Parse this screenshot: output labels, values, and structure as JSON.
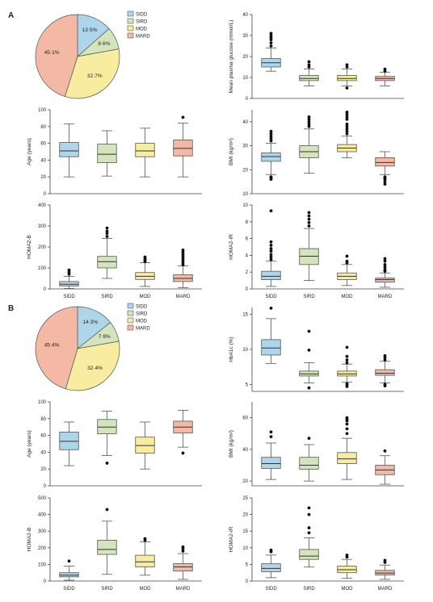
{
  "sections": [
    "A",
    "B"
  ],
  "colors": {
    "SIDD": "#aed6ea",
    "SIRD": "#d4e4bc",
    "MOD": "#f7ec9f",
    "MARD": "#f3b9a5",
    "stroke": "#555555",
    "outlier": "#111111"
  },
  "chart_data": [
    {
      "id": "A-pie",
      "type": "pie",
      "slices": [
        {
          "label": "SIDD",
          "value": 13.5,
          "display": "13·5%"
        },
        {
          "label": "SIRD",
          "value": 8.6,
          "display": "8·6%"
        },
        {
          "label": "MOD",
          "value": 32.7,
          "display": "32·7%"
        },
        {
          "label": "MARD",
          "value": 45.1,
          "display": "45·1%"
        }
      ],
      "legend": [
        "SIDD",
        "SIRD",
        "MOD",
        "MARD"
      ]
    },
    {
      "id": "A-glucose",
      "type": "box",
      "ylabel": "Mean plasma glucose (mmol/L)",
      "ylim": [
        0,
        40
      ],
      "yticks": [
        "0",
        "10",
        "20",
        "30",
        "40"
      ],
      "categories": [
        "SIDD",
        "SIRD",
        "MOD",
        "MARD"
      ],
      "boxes": [
        {
          "min": 13,
          "q1": 15,
          "median": 17,
          "q3": 19,
          "max": 24,
          "outliers": [
            25,
            26.5,
            28,
            29,
            30,
            31
          ]
        },
        {
          "min": 6,
          "q1": 8.5,
          "median": 9.5,
          "q3": 11,
          "max": 14,
          "outliers": [
            15,
            16,
            17.5
          ]
        },
        {
          "min": 6,
          "q1": 8.5,
          "median": 9.5,
          "q3": 11,
          "max": 14,
          "outliers": [
            5,
            15,
            16
          ]
        },
        {
          "min": 6,
          "q1": 8.5,
          "median": 9.5,
          "q3": 10.5,
          "max": 12.5,
          "outliers": [
            13,
            14
          ]
        }
      ]
    },
    {
      "id": "A-age",
      "type": "box",
      "ylabel": "Age (years)",
      "ylim": [
        0,
        100
      ],
      "yticks": [
        "0",
        "20",
        "40",
        "60",
        "80",
        "100"
      ],
      "categories": [
        "SIDD",
        "SIRD",
        "MOD",
        "MARD"
      ],
      "boxes": [
        {
          "min": 20,
          "q1": 44,
          "median": 51,
          "q3": 61,
          "max": 83,
          "outliers": []
        },
        {
          "min": 21,
          "q1": 37,
          "median": 47,
          "q3": 59,
          "max": 75,
          "outliers": []
        },
        {
          "min": 20,
          "q1": 44,
          "median": 51,
          "q3": 60,
          "max": 78,
          "outliers": []
        },
        {
          "min": 20,
          "q1": 45,
          "median": 54,
          "q3": 64,
          "max": 84,
          "outliers": [
            91
          ]
        }
      ]
    },
    {
      "id": "A-bmi",
      "type": "box",
      "ylabel": "BMI (kg/m²)",
      "ylim": [
        10,
        45
      ],
      "yticks": [
        "10",
        "20",
        "30",
        "40"
      ],
      "categories": [
        "SIDD",
        "SIRD",
        "MOD",
        "MARD"
      ],
      "boxes": [
        {
          "min": 18,
          "q1": 23.5,
          "median": 25.5,
          "q3": 27,
          "max": 31,
          "outliers": [
            16,
            16.5,
            17,
            32,
            33,
            34,
            35,
            36
          ]
        },
        {
          "min": 18.5,
          "q1": 25,
          "median": 27.5,
          "q3": 30,
          "max": 37,
          "outliers": [
            38,
            39,
            40,
            41,
            42
          ]
        },
        {
          "min": 25,
          "q1": 27.5,
          "median": 29,
          "q3": 30.5,
          "max": 34,
          "outliers": [
            35,
            36,
            37,
            38,
            39,
            41,
            42,
            43,
            44
          ]
        },
        {
          "min": 18,
          "q1": 21.5,
          "median": 23,
          "q3": 25,
          "max": 27.5,
          "outliers": [
            14,
            15,
            16,
            16.5,
            17
          ]
        }
      ]
    },
    {
      "id": "A-homab",
      "type": "box",
      "ylabel": "HOMA2-B",
      "ylim": [
        0,
        400
      ],
      "yticks": [
        "0",
        "100",
        "200",
        "300",
        "400"
      ],
      "categories": [
        "SIDD",
        "SIRD",
        "MOD",
        "MARD"
      ],
      "boxes": [
        {
          "min": 2,
          "q1": 14,
          "median": 22,
          "q3": 35,
          "max": 60,
          "outliers": [
            70,
            80,
            90
          ]
        },
        {
          "min": 50,
          "q1": 100,
          "median": 130,
          "q3": 155,
          "max": 240,
          "outliers": [
            250,
            265,
            275,
            290
          ]
        },
        {
          "min": 12,
          "q1": 45,
          "median": 60,
          "q3": 78,
          "max": 125,
          "outliers": [
            130,
            138,
            145,
            152
          ]
        },
        {
          "min": 6,
          "q1": 35,
          "median": 50,
          "q3": 68,
          "max": 110,
          "outliers": [
            115,
            125,
            135,
            145,
            155,
            165,
            175,
            185
          ]
        }
      ]
    },
    {
      "id": "A-homair",
      "type": "box",
      "ylabel": "HOMA2-IR",
      "ylim": [
        0,
        10
      ],
      "yticks": [
        "0",
        "2",
        "4",
        "6",
        "8",
        "10"
      ],
      "categories": [
        "SIDD",
        "SIRD",
        "MOD",
        "MARD"
      ],
      "boxes": [
        {
          "min": 0.3,
          "q1": 1.1,
          "median": 1.5,
          "q3": 2.1,
          "max": 3.3,
          "outliers": [
            3.5,
            3.8,
            4.1,
            4.5,
            4.8,
            5.2,
            5.6,
            9.3
          ]
        },
        {
          "min": 1,
          "q1": 2.9,
          "median": 3.9,
          "q3": 4.8,
          "max": 7.2,
          "outliers": [
            7.5,
            7.9,
            8.3,
            8.7,
            9.1
          ]
        },
        {
          "min": 0.4,
          "q1": 1.1,
          "median": 1.5,
          "q3": 1.9,
          "max": 2.9,
          "outliers": [
            3.1,
            3.3,
            3.9
          ]
        },
        {
          "min": 0.2,
          "q1": 0.8,
          "median": 1.1,
          "q3": 1.3,
          "max": 1.9,
          "outliers": [
            2.1,
            2.3,
            2.6,
            2.9,
            3.3,
            3.6
          ]
        }
      ]
    },
    {
      "id": "B-pie",
      "type": "pie",
      "slices": [
        {
          "label": "SIDD",
          "value": 14.3,
          "display": "14·3%"
        },
        {
          "label": "SIRD",
          "value": 7.9,
          "display": "7·9%"
        },
        {
          "label": "MOD",
          "value": 32.4,
          "display": "32·4%"
        },
        {
          "label": "MARD",
          "value": 45.4,
          "display": "45·4%"
        }
      ],
      "legend": [
        "SIDD",
        "SIRD",
        "MOD",
        "MARD"
      ]
    },
    {
      "id": "B-hba1c",
      "type": "box",
      "ylabel": "HbA1c (%)",
      "ylim": [
        4,
        16
      ],
      "yticks": [
        "5",
        "10",
        "15"
      ],
      "categories": [
        "SIDD",
        "SIRD",
        "MOD",
        "MARD"
      ],
      "boxes": [
        {
          "min": 8,
          "q1": 9.2,
          "median": 10.2,
          "q3": 11.4,
          "max": 14.4,
          "outliers": [
            15.9
          ]
        },
        {
          "min": 5.2,
          "q1": 6.2,
          "median": 6.5,
          "q3": 6.9,
          "max": 8.1,
          "outliers": [
            4.5,
            9.9,
            12.6
          ]
        },
        {
          "min": 5.3,
          "q1": 6.2,
          "median": 6.5,
          "q3": 6.9,
          "max": 7.9,
          "outliers": [
            4.7,
            5.0,
            5.1,
            8.1,
            8.5,
            9.0,
            10.3
          ]
        },
        {
          "min": 5.2,
          "q1": 6.3,
          "median": 6.6,
          "q3": 7.1,
          "max": 8.3,
          "outliers": [
            4.8,
            5.0,
            8.5,
            8.8,
            9.1
          ]
        }
      ]
    },
    {
      "id": "B-age",
      "type": "box",
      "ylabel": "Age (years)",
      "ylim": [
        0,
        100
      ],
      "yticks": [
        "0",
        "20",
        "40",
        "60",
        "80",
        "100"
      ],
      "categories": [
        "SIDD",
        "SIRD",
        "MOD",
        "MARD"
      ],
      "boxes": [
        {
          "min": 24,
          "q1": 43,
          "median": 53,
          "q3": 64,
          "max": 76,
          "outliers": []
        },
        {
          "min": 36,
          "q1": 62,
          "median": 70,
          "q3": 79,
          "max": 89,
          "outliers": [
            27
          ]
        },
        {
          "min": 20,
          "q1": 39,
          "median": 48,
          "q3": 58,
          "max": 76,
          "outliers": []
        },
        {
          "min": 46,
          "q1": 63,
          "median": 70,
          "q3": 77,
          "max": 90,
          "outliers": [
            39
          ]
        }
      ]
    },
    {
      "id": "B-bmi",
      "type": "box",
      "ylabel": "BMI (kg/m²)",
      "ylim": [
        17,
        70
      ],
      "yticks": [
        "20",
        "40",
        "60"
      ],
      "categories": [
        "SIDD",
        "SIRD",
        "MOD",
        "MARD"
      ],
      "boxes": [
        {
          "min": 21,
          "q1": 28,
          "median": 31,
          "q3": 35,
          "max": 44,
          "outliers": [
            48,
            51
          ]
        },
        {
          "min": 20,
          "q1": 27.5,
          "median": 30,
          "q3": 35,
          "max": 43,
          "outliers": [
            47
          ]
        },
        {
          "min": 21,
          "q1": 31,
          "median": 34,
          "q3": 38,
          "max": 47,
          "outliers": [
            50,
            53,
            56,
            58,
            59,
            60
          ]
        },
        {
          "min": 18,
          "q1": 24,
          "median": 27,
          "q3": 30,
          "max": 36,
          "outliers": [
            39
          ]
        }
      ]
    },
    {
      "id": "B-homab",
      "type": "box",
      "ylabel": "HOMA2-B",
      "ylim": [
        0,
        500
      ],
      "yticks": [
        "0",
        "100",
        "200",
        "300",
        "400",
        "500"
      ],
      "categories": [
        "SIDD",
        "SIRD",
        "MOD",
        "MARD"
      ],
      "boxes": [
        {
          "min": 5,
          "q1": 25,
          "median": 35,
          "q3": 50,
          "max": 90,
          "outliers": [
            120
          ]
        },
        {
          "min": 40,
          "q1": 160,
          "median": 190,
          "q3": 245,
          "max": 360,
          "outliers": [
            430
          ]
        },
        {
          "min": 35,
          "q1": 85,
          "median": 115,
          "q3": 155,
          "max": 235,
          "outliers": [
            245,
            255
          ]
        },
        {
          "min": 10,
          "q1": 60,
          "median": 85,
          "q3": 105,
          "max": 165,
          "outliers": [
            180,
            195,
            205
          ]
        }
      ]
    },
    {
      "id": "B-homair",
      "type": "box",
      "ylabel": "HOMA2-IR",
      "ylim": [
        0,
        25
      ],
      "yticks": [
        "0",
        "5",
        "10",
        "15",
        "20",
        "25"
      ],
      "categories": [
        "SIDD",
        "SIRD",
        "MOD",
        "MARD"
      ],
      "boxes": [
        {
          "min": 1,
          "q1": 2.8,
          "median": 3.8,
          "q3": 5.2,
          "max": 7.8,
          "outliers": [
            8.8,
            9.3
          ]
        },
        {
          "min": 4.2,
          "q1": 6.5,
          "median": 7.5,
          "q3": 9.5,
          "max": 13,
          "outliers": [
            14.5,
            16,
            20,
            22
          ]
        },
        {
          "min": 0.8,
          "q1": 2.5,
          "median": 3.4,
          "q3": 4.5,
          "max": 6.5,
          "outliers": [
            7.2,
            7.8
          ]
        },
        {
          "min": 0.5,
          "q1": 1.8,
          "median": 2.4,
          "q3": 3.2,
          "max": 4.8,
          "outliers": [
            5.6,
            6.2
          ]
        }
      ]
    }
  ]
}
